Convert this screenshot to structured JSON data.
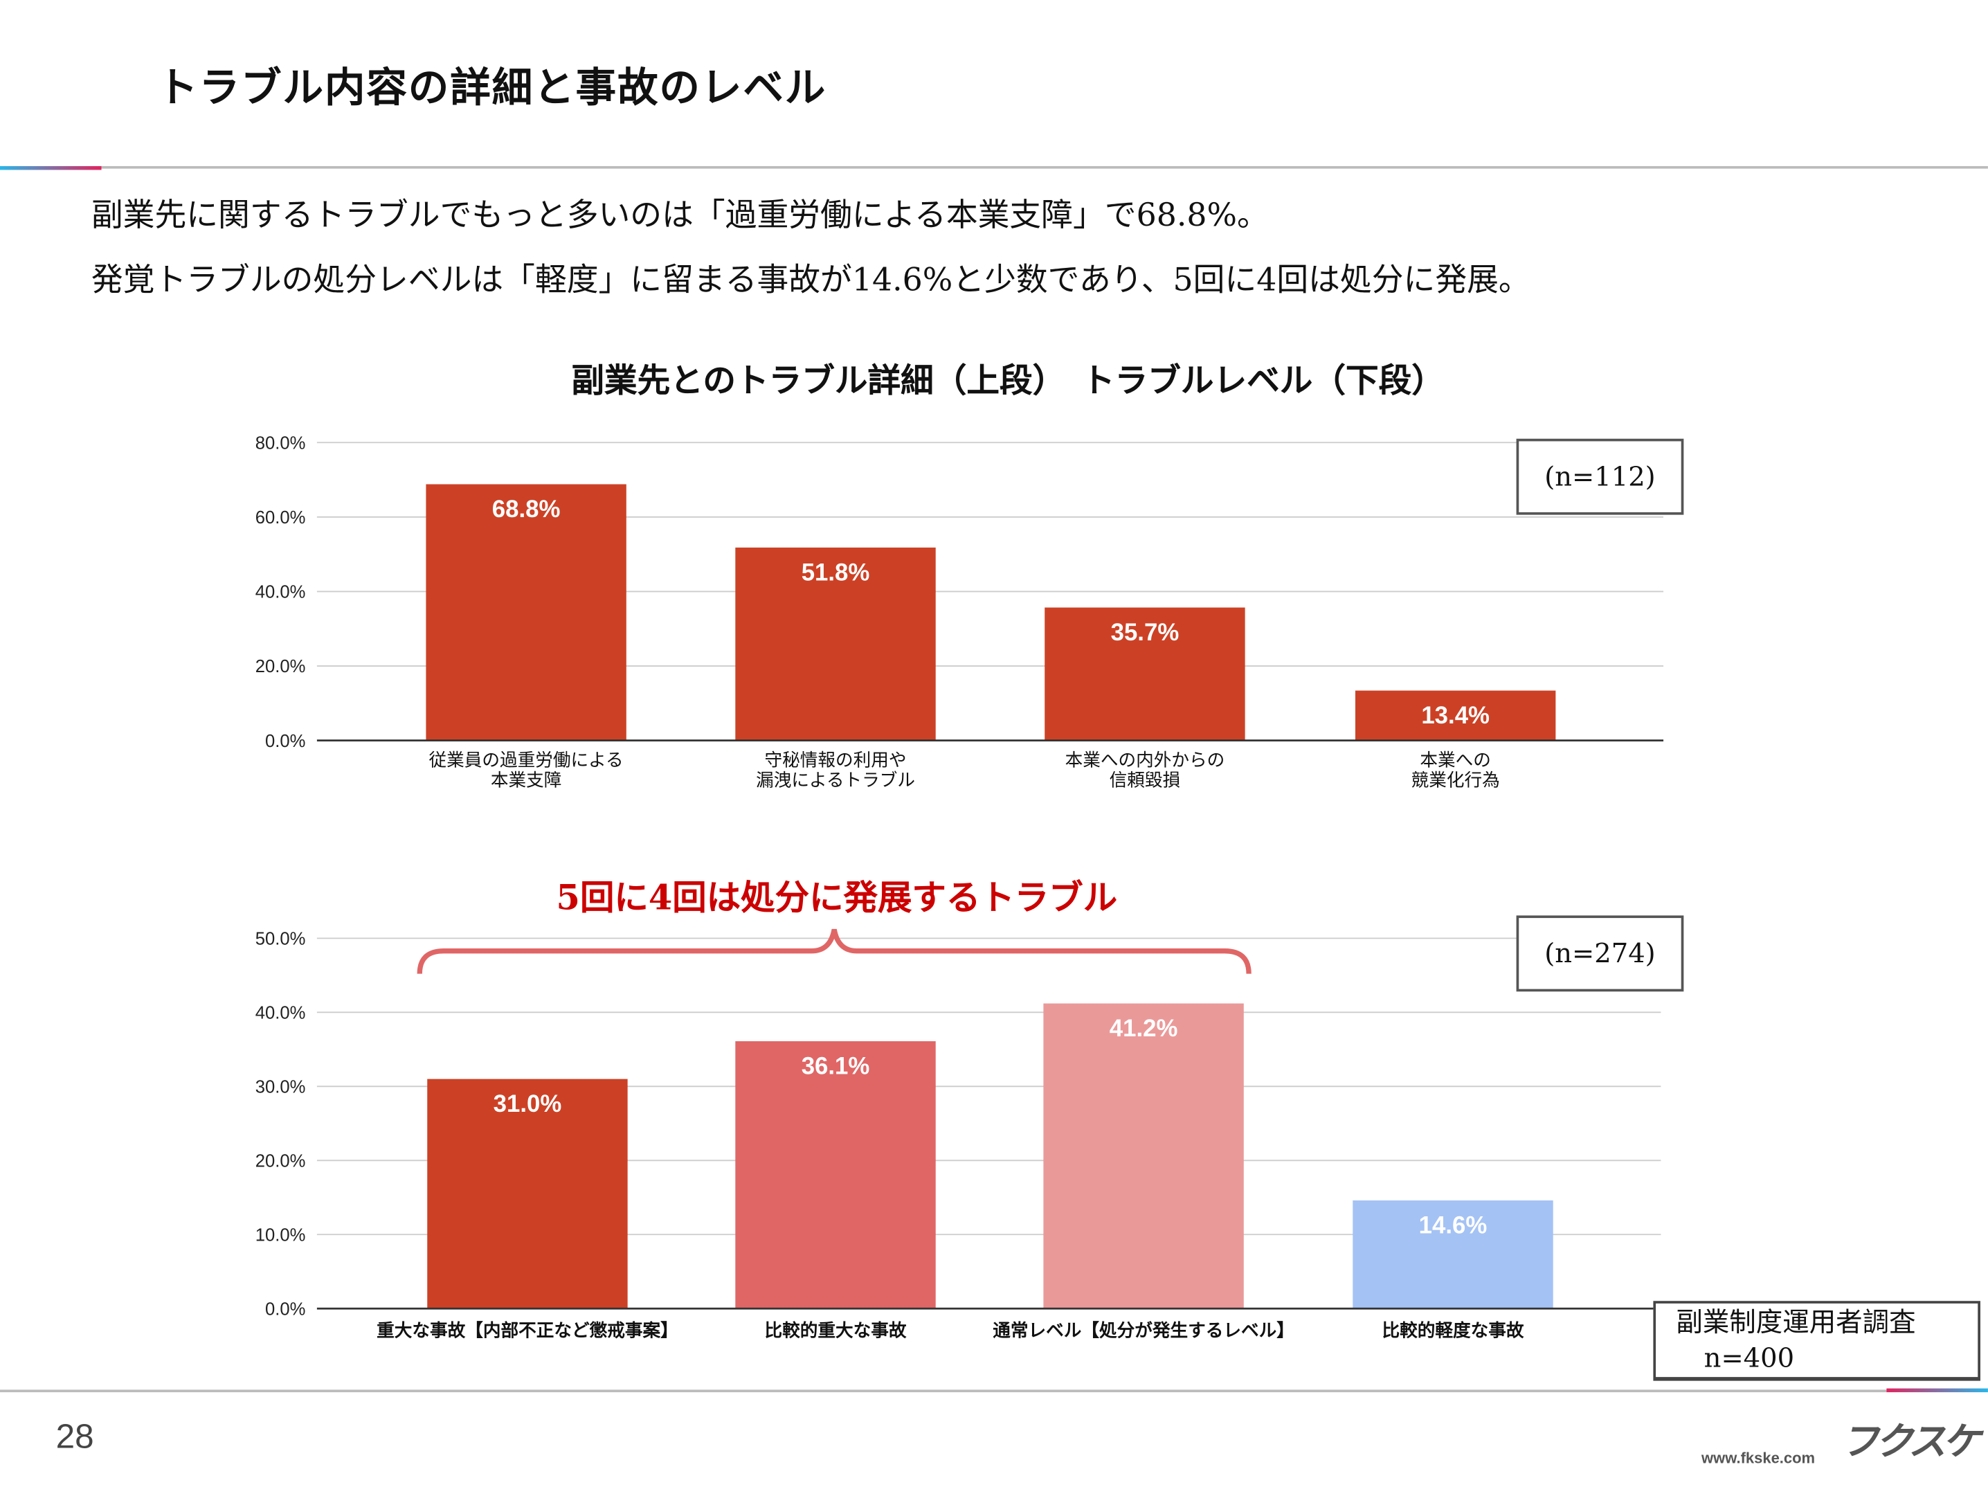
{
  "title": "トラブル内容の詳細と事故のレベル",
  "lead": [
    "副業先に関するトラブルでもっと多いのは「過重労働による本業支障」で68.8%。",
    "発覚トラブルの処分レベルは「軽度」に留まる事故が14.6%と少数であり、5回に4回は処分に発展。"
  ],
  "chart_heading": "副業先とのトラブル詳細（上段）　トラブルレベル（下段）",
  "callout": "5回に4回は処分に発展するトラブル",
  "source": {
    "line1": "副業制度運用者調査",
    "line2": "n=400"
  },
  "footer": {
    "page": "28",
    "url": "www.fkske.com",
    "logo": "フクスケ"
  },
  "colors": {
    "bar_red": "#cc4125",
    "bar_mid": "#e06666",
    "bar_light": "#ea9999",
    "bar_blue": "#a4c2f4",
    "callout": "#cc0000"
  },
  "chart_data": [
    {
      "type": "bar",
      "n_label": "(n=112)",
      "ylim": [
        0,
        80
      ],
      "yticks": [
        "0.0%",
        "20.0%",
        "40.0%",
        "60.0%",
        "80.0%"
      ],
      "grid": true,
      "categories": [
        [
          "従業員の過重労働による",
          "本業支障"
        ],
        [
          "守秘情報の利用や",
          "漏洩によるトラブル"
        ],
        [
          "本業への内外からの",
          "信頼毀損"
        ],
        [
          "本業への",
          "競業化行為"
        ]
      ],
      "values": [
        68.8,
        51.8,
        35.7,
        13.4
      ],
      "labels": [
        "68.8%",
        "51.8%",
        "35.7%",
        "13.4%"
      ],
      "bar_colors": [
        "#cc4125",
        "#cc4125",
        "#cc4125",
        "#cc4125"
      ]
    },
    {
      "type": "bar",
      "n_label": "(n=274)",
      "ylim": [
        0,
        50
      ],
      "yticks": [
        "0.0%",
        "10.0%",
        "20.0%",
        "30.0%",
        "40.0%",
        "50.0%"
      ],
      "grid": true,
      "categories": [
        [
          "重大な事故【内部不正など懲戒事案】"
        ],
        [
          "比較的重大な事故"
        ],
        [
          "通常レベル【処分が発生するレベル】"
        ],
        [
          "比較的軽度な事故"
        ]
      ],
      "values": [
        31.0,
        36.1,
        41.2,
        14.6
      ],
      "labels": [
        "31.0%",
        "36.1%",
        "41.2%",
        "14.6%"
      ],
      "bar_colors": [
        "#cc4125",
        "#e06666",
        "#ea9999",
        "#a4c2f4"
      ]
    }
  ]
}
